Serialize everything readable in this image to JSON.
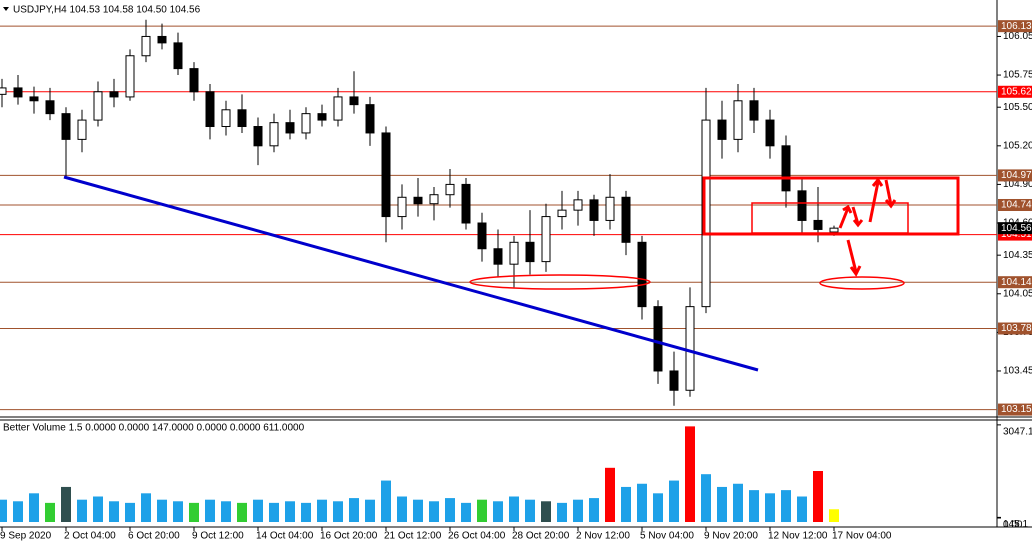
{
  "chart_data": [
    {
      "type": "candlestick",
      "title": "USDJPY,H4 104.53 104.58 104.50 104.56",
      "categories": [
        "9 Sep 2020",
        null,
        null,
        null,
        "2 Oct 04:00",
        null,
        null,
        null,
        "6 Oct 20:00",
        null,
        null,
        null,
        "9 Oct 12:00",
        null,
        null,
        null,
        "14 Oct 04:00",
        null,
        null,
        null,
        "16 Oct 20:00",
        null,
        null,
        null,
        "21 Oct 12:00",
        null,
        null,
        null,
        "26 Oct 04:00",
        null,
        null,
        null,
        "28 Oct 20:00",
        null,
        null,
        null,
        "2 Nov 12:00",
        null,
        null,
        null,
        "5 Nov 04:00",
        null,
        null,
        null,
        "9 Nov 20:00",
        null,
        null,
        null,
        "12 Nov 12:00",
        null,
        null,
        null,
        "17 Nov 04:00"
      ],
      "open": [
        105.6,
        105.65,
        105.58,
        105.55,
        105.45,
        105.25,
        105.4,
        105.62,
        105.58,
        105.9,
        106.05,
        106.0,
        105.8,
        105.62,
        105.35,
        105.48,
        105.35,
        105.2,
        105.38,
        105.3,
        105.45,
        105.4,
        105.58,
        105.52,
        105.3,
        104.65,
        104.8,
        104.75,
        104.82,
        104.9,
        104.6,
        104.4,
        104.28,
        104.45,
        104.3,
        104.65,
        104.7,
        104.78,
        104.62,
        104.8,
        104.45,
        103.95,
        103.45,
        103.3,
        103.95,
        105.4,
        105.25,
        105.55,
        105.4,
        105.2,
        104.85,
        104.62,
        104.53
      ],
      "high": [
        105.72,
        105.75,
        105.66,
        105.65,
        105.5,
        105.48,
        105.7,
        105.72,
        105.95,
        106.18,
        106.15,
        106.08,
        105.85,
        105.68,
        105.55,
        105.6,
        105.42,
        105.45,
        105.48,
        105.5,
        105.52,
        105.65,
        105.78,
        105.58,
        105.35,
        104.9,
        104.95,
        104.88,
        105.02,
        104.95,
        104.68,
        104.55,
        104.5,
        104.7,
        104.75,
        104.85,
        104.85,
        104.82,
        104.98,
        104.85,
        104.5,
        104.0,
        103.6,
        104.1,
        105.65,
        105.55,
        105.68,
        105.65,
        105.48,
        105.28,
        104.95,
        104.88,
        104.58
      ],
      "low": [
        105.5,
        105.52,
        105.45,
        105.4,
        104.95,
        105.15,
        105.35,
        105.5,
        105.55,
        105.85,
        105.95,
        105.75,
        105.55,
        105.25,
        105.28,
        105.3,
        105.05,
        105.15,
        105.25,
        105.25,
        105.35,
        105.35,
        105.45,
        105.2,
        104.45,
        104.55,
        104.65,
        104.62,
        104.72,
        104.55,
        104.3,
        104.18,
        104.1,
        104.2,
        104.22,
        104.55,
        104.58,
        104.5,
        104.55,
        104.35,
        103.85,
        103.35,
        103.18,
        103.25,
        103.9,
        105.1,
        105.15,
        105.3,
        105.1,
        104.72,
        104.52,
        104.45,
        104.5
      ],
      "close": [
        105.65,
        105.58,
        105.55,
        105.45,
        105.25,
        105.4,
        105.62,
        105.58,
        105.9,
        106.05,
        106.0,
        105.8,
        105.62,
        105.35,
        105.48,
        105.35,
        105.2,
        105.38,
        105.3,
        105.45,
        105.4,
        105.58,
        105.52,
        105.3,
        104.65,
        104.8,
        104.75,
        104.82,
        104.9,
        104.6,
        104.4,
        104.28,
        104.45,
        104.3,
        104.65,
        104.7,
        104.78,
        104.62,
        104.8,
        104.45,
        103.95,
        103.45,
        103.3,
        103.95,
        105.4,
        105.25,
        105.55,
        105.4,
        105.2,
        104.85,
        104.62,
        104.55,
        104.56
      ],
      "ylim": [
        103.1,
        106.31
      ],
      "yticks": [
        106.05,
        105.75,
        {
          "value": 105.5,
          "label": "105.50"
        },
        {
          "value": 105.2,
          "label": "105.20"
        },
        {
          "value": 104.9,
          "label": "104.90"
        },
        {
          "value": 104.6,
          "label": "104.60"
        },
        104.35,
        104.05,
        103.75,
        103.45
      ],
      "levels": [
        {
          "value": 106.13,
          "color": "#a0522d"
        },
        {
          "value": 105.62,
          "color": "#ff0000"
        },
        {
          "value": 104.97,
          "color": "#a0522d"
        },
        {
          "value": 104.74,
          "color": "#a0522d"
        },
        {
          "value": 104.51,
          "color": "#ff0000"
        },
        {
          "value": 104.14,
          "color": "#a0522d"
        },
        {
          "value": 103.78,
          "color": "#a0522d"
        },
        {
          "value": 103.15,
          "color": "#a0522d"
        }
      ],
      "current_price": 104.56
    },
    {
      "type": "bar",
      "title": "Better Volume 1.5 0.0000 0.0000 147.0000 0.0000 0.0000 611.0000",
      "values": [
        700,
        650,
        900,
        600,
        1100,
        700,
        800,
        650,
        600,
        900,
        700,
        650,
        600,
        700,
        650,
        600,
        700,
        600,
        650,
        600,
        700,
        650,
        750,
        700,
        1300,
        800,
        700,
        650,
        750,
        600,
        700,
        650,
        800,
        700,
        650,
        600,
        700,
        750,
        1700,
        1100,
        1200,
        900,
        1300,
        3000,
        1500,
        1100,
        1200,
        1000,
        900,
        1000,
        800,
        1600,
        400
      ],
      "colors": [
        "#1ea1e8",
        "#1ea1e8",
        "#1ea1e8",
        "#32cd32",
        "#2f4f4f",
        "#1ea1e8",
        "#1ea1e8",
        "#1ea1e8",
        "#1ea1e8",
        "#1ea1e8",
        "#1ea1e8",
        "#1ea1e8",
        "#32cd32",
        "#1ea1e8",
        "#1ea1e8",
        "#32cd32",
        "#1ea1e8",
        "#1ea1e8",
        "#1ea1e8",
        "#1ea1e8",
        "#1ea1e8",
        "#1ea1e8",
        "#1ea1e8",
        "#1ea1e8",
        "#1ea1e8",
        "#1ea1e8",
        "#1ea1e8",
        "#1ea1e8",
        "#1ea1e8",
        "#1ea1e8",
        "#32cd32",
        "#1ea1e8",
        "#1ea1e8",
        "#1ea1e8",
        "#2f4f4f",
        "#1ea1e8",
        "#1ea1e8",
        "#1ea1e8",
        "#ff0000",
        "#1ea1e8",
        "#1ea1e8",
        "#1ea1e8",
        "#1ea1e8",
        "#ff0000",
        "#1ea1e8",
        "#1ea1e8",
        "#1ea1e8",
        "#1ea1e8",
        "#1ea1e8",
        "#1ea1e8",
        "#1ea1e8",
        "#ff0000",
        "#ffff00"
      ],
      "ylim": [
        0,
        3200
      ],
      "yticks": [
        3047.1,
        145.1,
        {
          "value": 0,
          "label": "0.00"
        }
      ]
    }
  ]
}
